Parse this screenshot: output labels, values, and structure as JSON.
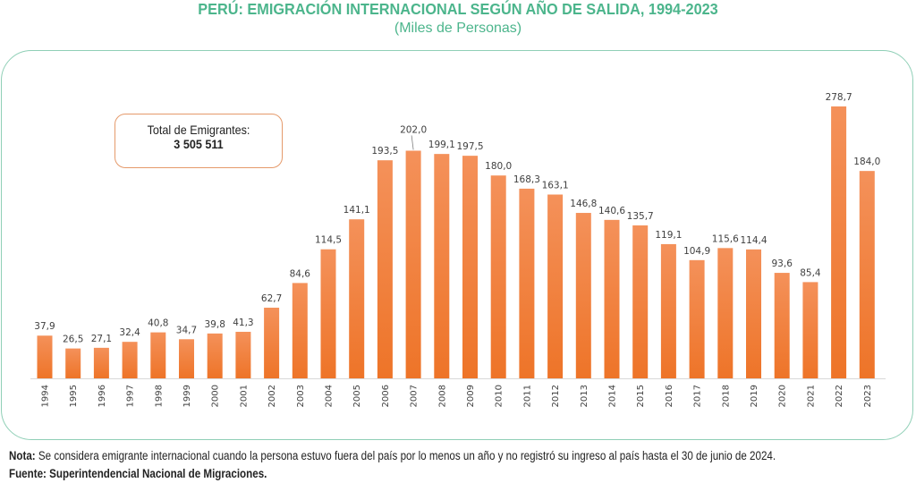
{
  "header": {
    "title": "PERÚ: EMIGRACIÓN INTERNACIONAL SEGÚN AÑO DE SALIDA, 1994-2023",
    "subtitle": "(Miles de Personas)"
  },
  "total_box": {
    "label": "Total de Emigrantes:",
    "value": "3 505 511"
  },
  "footer": {
    "note_label": "Nota:",
    "note_text": " Se considera emigrante internacional cuando la persona estuvo fuera del país por lo menos un año y no registró su ingreso al país hasta el 30 de junio de 2024.",
    "source": "Fuente: Superintendencial Nacional de Migraciones."
  },
  "colors": {
    "title": "#4cb58c",
    "frame": "#8fcfb6",
    "bar_top": "#f4915a",
    "bar_bottom": "#ee7428",
    "total_box_border": "#e59a6b"
  },
  "chart_data": {
    "type": "bar",
    "title": "PERÚ: EMIGRACIÓN INTERNACIONAL SEGÚN AÑO DE SALIDA, 1994-2023",
    "subtitle": "(Miles de Personas)",
    "xlabel": "",
    "ylabel": "",
    "grid": false,
    "legend": "none",
    "categories": [
      "1994",
      "1995",
      "1996",
      "1997",
      "1998",
      "1999",
      "2000",
      "2001",
      "2002",
      "2003",
      "2004",
      "2005",
      "2006",
      "2007",
      "2008",
      "2009",
      "2010",
      "2011",
      "2012",
      "2013",
      "2014",
      "2015",
      "2016",
      "2017",
      "2018",
      "2019",
      "2020",
      "2021",
      "2022",
      "2023"
    ],
    "values": [
      37.9,
      26.5,
      27.1,
      32.4,
      40.8,
      34.7,
      39.8,
      41.3,
      62.7,
      84.6,
      114.5,
      141.1,
      193.5,
      202.0,
      199.1,
      197.5,
      180.0,
      168.3,
      163.1,
      146.8,
      140.6,
      135.7,
      119.1,
      104.9,
      115.6,
      114.4,
      93.6,
      85.4,
      278.7,
      184.0
    ],
    "labels": [
      "37,9",
      "26,5",
      "27,1",
      "32,4",
      "40,8",
      "34,7",
      "39,8",
      "41,3",
      "62,7",
      "84,6",
      "114,5",
      "141,1",
      "193,5",
      "202,0",
      "199,1",
      "197,5",
      "180,0",
      "168,3",
      "163,1",
      "146,8",
      "140,6",
      "135,7",
      "119,1",
      "104,9",
      "115,6",
      "114,4",
      "93,6",
      "85,4",
      "278,7",
      "184,0"
    ],
    "ylim": [
      0,
      245
    ],
    "annotation": "Total de Emigrantes: 3 505 511"
  }
}
